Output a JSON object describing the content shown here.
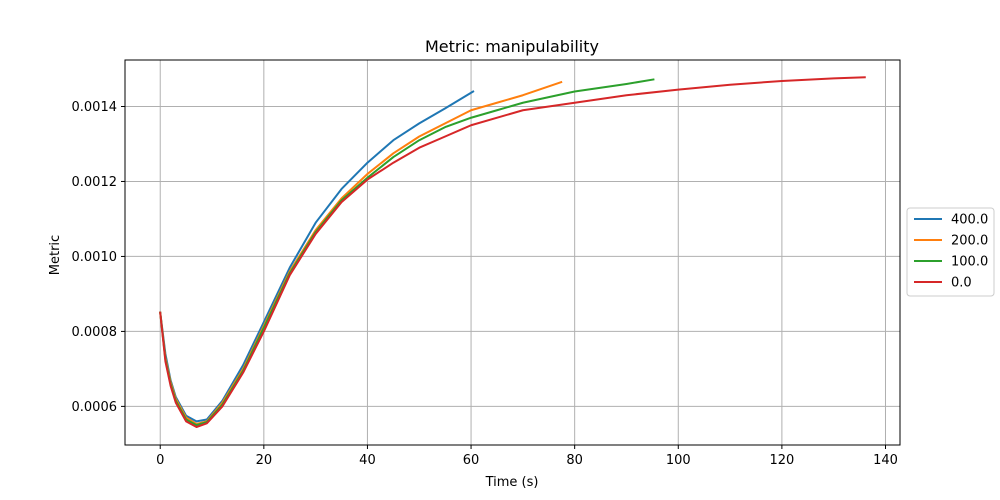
{
  "chart_data": {
    "type": "line",
    "title": "Metric: manipulability",
    "xlabel": "Time (s)",
    "ylabel": "Metric",
    "xlim": [
      -6.8,
      142.8
    ],
    "ylim": [
      0.000497,
      0.001524
    ],
    "xticks": [
      0,
      20,
      40,
      60,
      80,
      100,
      120,
      140
    ],
    "yticks": [
      0.0006,
      0.0008,
      0.001,
      0.0012,
      0.0014
    ],
    "ytick_labels": [
      "0.0006",
      "0.0008",
      "0.0010",
      "0.0012",
      "0.0014"
    ],
    "grid": true,
    "legend_position": "center-right-outside",
    "series": [
      {
        "name": "400.0",
        "color": "#1f77b4",
        "x": [
          0,
          1,
          2,
          3,
          5,
          7,
          9,
          12,
          16,
          20,
          25,
          30,
          35,
          40,
          45,
          50,
          55,
          60.4
        ],
        "y": [
          0.00085,
          0.00074,
          0.00067,
          0.000625,
          0.000575,
          0.00056,
          0.000565,
          0.000615,
          0.00071,
          0.000825,
          0.00097,
          0.00109,
          0.00118,
          0.00125,
          0.00131,
          0.001355,
          0.001395,
          0.00144
        ]
      },
      {
        "name": "200.0",
        "color": "#ff7f0e",
        "x": [
          0,
          1,
          2,
          3,
          5,
          7,
          9,
          12,
          16,
          20,
          25,
          30,
          35,
          40,
          45,
          50,
          55,
          60,
          65,
          70,
          77.4
        ],
        "y": [
          0.00085,
          0.00073,
          0.000665,
          0.00062,
          0.00057,
          0.000553,
          0.00056,
          0.00061,
          0.0007,
          0.000815,
          0.00096,
          0.00107,
          0.001155,
          0.00122,
          0.001275,
          0.00132,
          0.001355,
          0.00139,
          0.00141,
          0.00143,
          0.001465
        ]
      },
      {
        "name": "100.0",
        "color": "#2ca02c",
        "x": [
          0,
          1,
          2,
          3,
          5,
          7,
          9,
          12,
          16,
          20,
          25,
          30,
          35,
          40,
          45,
          50,
          55,
          60,
          65,
          70,
          75,
          80,
          85,
          90,
          95.2
        ],
        "y": [
          0.00085,
          0.000725,
          0.00066,
          0.000615,
          0.000565,
          0.00055,
          0.000558,
          0.000605,
          0.000695,
          0.00081,
          0.000955,
          0.001065,
          0.00115,
          0.00121,
          0.001265,
          0.00131,
          0.001345,
          0.00137,
          0.00139,
          0.00141,
          0.001425,
          0.00144,
          0.00145,
          0.00146,
          0.001472
        ]
      },
      {
        "name": "0.0",
        "color": "#d62728",
        "x": [
          0,
          1,
          2,
          3,
          5,
          7,
          9,
          12,
          16,
          20,
          25,
          30,
          35,
          40,
          45,
          50,
          55,
          60,
          70,
          80,
          90,
          100,
          110,
          120,
          130,
          136
        ],
        "y": [
          0.00085,
          0.00072,
          0.000655,
          0.00061,
          0.00056,
          0.000545,
          0.000555,
          0.0006,
          0.00069,
          0.0008,
          0.00095,
          0.00106,
          0.001145,
          0.001205,
          0.00125,
          0.00129,
          0.00132,
          0.00135,
          0.00139,
          0.00141,
          0.00143,
          0.001445,
          0.001458,
          0.001468,
          0.001475,
          0.001478
        ]
      }
    ]
  }
}
